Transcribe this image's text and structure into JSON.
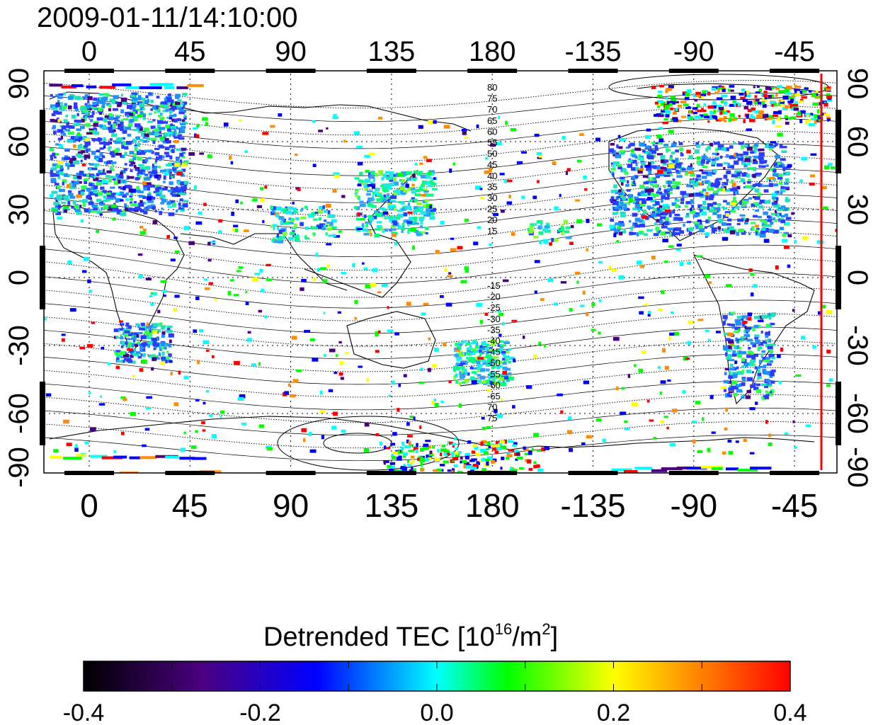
{
  "timestamp": "2009-01-11/14:10:00",
  "map": {
    "lon_ticks": [
      "0",
      "45",
      "90",
      "135",
      "180",
      "-135",
      "-90",
      "-45"
    ],
    "lat_ticks": [
      "90",
      "60",
      "30",
      "0",
      "-30",
      "-60",
      "-90"
    ],
    "contour_labels_north": [
      "80",
      "75",
      "70",
      "65",
      "60",
      "55",
      "50",
      "45",
      "40",
      "35",
      "30",
      "25",
      "20",
      "15"
    ],
    "contour_labels_south": [
      "-15",
      "-20",
      "-25",
      "-30",
      "-35",
      "-40",
      "-45",
      "-50",
      "-55",
      "-60",
      "-65",
      "70",
      "75"
    ],
    "marker_line_color": "#ff0000"
  },
  "colorbar": {
    "title_main": "Detrended TEC  [10",
    "title_sup1": "16",
    "title_mid": "/m",
    "title_sup2": "2",
    "title_end": "]",
    "tick_labels": [
      "-0.4",
      "-0.2",
      "0.0",
      "0.2",
      "0.4"
    ],
    "range": [
      -0.4,
      0.4
    ],
    "colors": [
      "#000000",
      "#4b0082",
      "#0000ff",
      "#00ffff",
      "#00ff00",
      "#ffff00",
      "#ff0000"
    ]
  }
}
